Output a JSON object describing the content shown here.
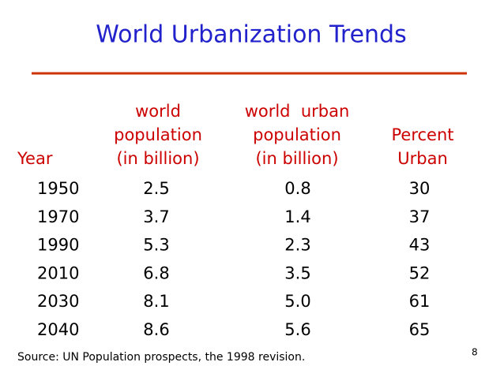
{
  "title": "World Urbanization Trends",
  "table": {
    "headers": [
      [
        "Year"
      ],
      [
        "world",
        "population",
        "(in billion)"
      ],
      [
        "world  urban",
        "population",
        "(in billion)"
      ],
      [
        "Percent",
        "Urban"
      ]
    ],
    "rows": [
      [
        "1950",
        "2.5",
        "0.8",
        "30"
      ],
      [
        "1970",
        "3.7",
        "1.4",
        "37"
      ],
      [
        "1990",
        "5.3",
        "2.3",
        "43"
      ],
      [
        "2010",
        "6.8",
        "3.5",
        "52"
      ],
      [
        "2030",
        "8.1",
        "5.0",
        "61"
      ],
      [
        "2040",
        "8.6",
        "5.6",
        "65"
      ]
    ]
  },
  "source": "Source: UN Population prospects, the 1998 revision.",
  "page_number": "8"
}
